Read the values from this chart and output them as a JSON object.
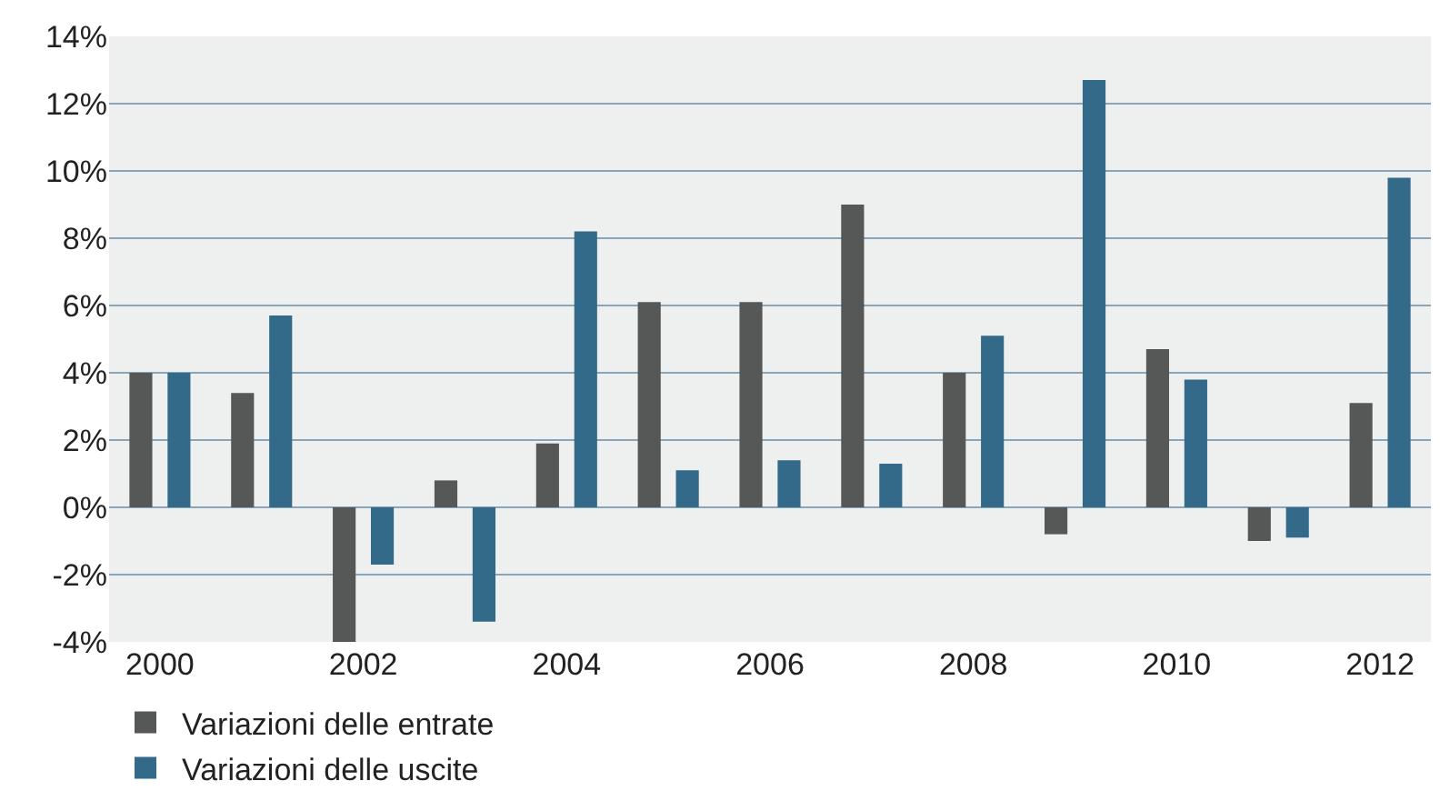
{
  "chart_data": {
    "type": "bar",
    "categories": [
      "2000",
      null,
      "2002",
      null,
      "2004",
      null,
      "2006",
      null,
      "2008",
      null,
      "2010",
      null,
      "2012"
    ],
    "series": [
      {
        "name": "Variazioni delle entrate",
        "color": "#555857",
        "values": [
          4.0,
          3.4,
          -4.0,
          0.8,
          1.9,
          6.1,
          6.1,
          9.0,
          4.0,
          -0.8,
          4.7,
          -1.0,
          3.1
        ]
      },
      {
        "name": "Variazioni delle uscite",
        "color": "#336a89",
        "values": [
          4.0,
          5.7,
          -1.7,
          -3.4,
          8.2,
          1.1,
          1.4,
          1.3,
          5.1,
          12.7,
          3.8,
          -0.9,
          9.8
        ]
      }
    ],
    "ylim": [
      -4,
      14
    ],
    "yticks": [
      {
        "value": -4,
        "label": "-4%"
      },
      {
        "value": -2,
        "label": "-2%"
      },
      {
        "value": 0,
        "label": "0%"
      },
      {
        "value": 2,
        "label": "2%"
      },
      {
        "value": 4,
        "label": "4%"
      },
      {
        "value": 6,
        "label": "6%"
      },
      {
        "value": 8,
        "label": "8%"
      },
      {
        "value": 10,
        "label": "10%"
      },
      {
        "value": 12,
        "label": "12%"
      },
      {
        "value": 14,
        "label": "14%"
      }
    ],
    "grid": "y",
    "legend": "bottom"
  }
}
